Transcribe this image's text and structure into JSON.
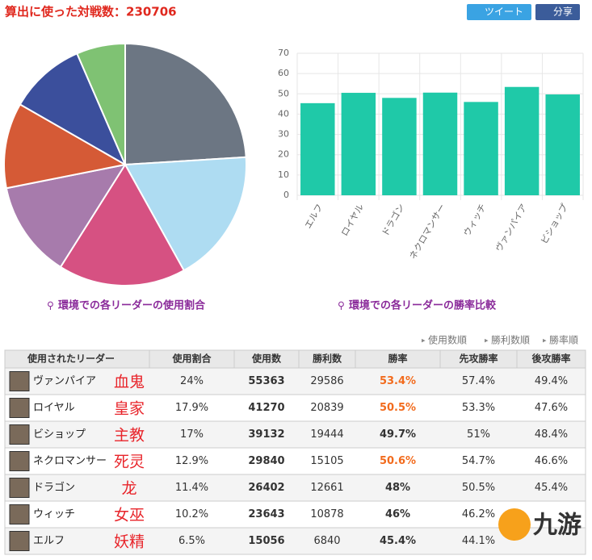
{
  "header": {
    "title": "算出に使った対戦数：230706",
    "buttons": [
      "ツイート",
      "分享"
    ]
  },
  "chart_data": [
    {
      "type": "pie",
      "caption": "環境での各リーダーの使用割合",
      "values": [
        24,
        17.9,
        17,
        12.9,
        11.4,
        10.2,
        6.5
      ],
      "colors": [
        "#6c7683",
        "#aedcf2",
        "#d65182",
        "#a77bac",
        "#d55a36",
        "#3b4f9c",
        "#7fc273"
      ]
    },
    {
      "type": "bar",
      "caption": "環境での各リーダーの勝率比較",
      "categories": [
        "エルフ",
        "ロイヤル",
        "ドラゴン",
        "ネクロマンサー",
        "ウィッチ",
        "ヴァンパイア",
        "ビショップ"
      ],
      "values": [
        45.4,
        50.5,
        48,
        50.6,
        46,
        53.4,
        49.7
      ],
      "color": "#1fc9a8",
      "ylim": [
        0,
        70
      ],
      "yticks": [
        0,
        10,
        20,
        30,
        40,
        50,
        60,
        70
      ],
      "grid": true
    }
  ],
  "sort_links": [
    "使用数順",
    "勝利数順",
    "勝率順"
  ],
  "table": {
    "highlight_color": "#f26b1d",
    "columns": [
      "使用されたリーダー",
      "使用割合",
      "使用数",
      "勝利数",
      "勝率",
      "先攻勝率",
      "後攻勝率"
    ],
    "rows": [
      {
        "name": "ヴァンパイア",
        "note": "血鬼",
        "cells": [
          "24%",
          "55363",
          "29586",
          "53.4%",
          "57.4%",
          "49.4%"
        ],
        "highlight": true
      },
      {
        "name": "ロイヤル",
        "note": "皇家",
        "cells": [
          "17.9%",
          "41270",
          "20839",
          "50.5%",
          "53.3%",
          "47.6%"
        ],
        "highlight": true
      },
      {
        "name": "ビショップ",
        "note": "主教",
        "cells": [
          "17%",
          "39132",
          "19444",
          "49.7%",
          "51%",
          "48.4%"
        ],
        "highlight": false
      },
      {
        "name": "ネクロマンサー",
        "note": "死灵",
        "cells": [
          "12.9%",
          "29840",
          "15105",
          "50.6%",
          "54.7%",
          "46.6%"
        ],
        "highlight": true
      },
      {
        "name": "ドラゴン",
        "note": "龙",
        "cells": [
          "11.4%",
          "26402",
          "12661",
          "48%",
          "50.5%",
          "45.4%"
        ],
        "highlight": false
      },
      {
        "name": "ウィッチ",
        "note": "女巫",
        "cells": [
          "10.2%",
          "23643",
          "10878",
          "46%",
          "46.2%",
          ""
        ],
        "highlight": false
      },
      {
        "name": "エルフ",
        "note": "妖精",
        "cells": [
          "6.5%",
          "15056",
          "6840",
          "45.4%",
          "44.1%",
          ""
        ],
        "highlight": false
      }
    ]
  },
  "watermark": "九游"
}
